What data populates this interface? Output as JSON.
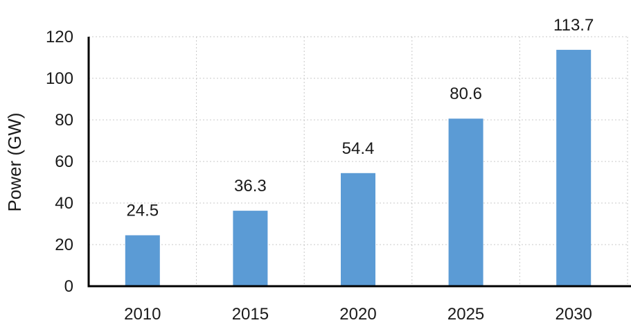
{
  "chart_data": {
    "type": "bar",
    "categories": [
      "2010",
      "2015",
      "2020",
      "2025",
      "2030"
    ],
    "values": [
      24.5,
      36.3,
      54.4,
      80.6,
      113.7
    ],
    "data_labels": [
      "24.5",
      "36.3",
      "54.4",
      "80.6",
      "113.7"
    ],
    "title": "",
    "xlabel": "",
    "ylabel": "Power (GW)",
    "ylim": [
      0,
      120
    ],
    "yticks": [
      0,
      20,
      40,
      60,
      80,
      100,
      120
    ],
    "grid": true,
    "legend": "none",
    "bar_color": "#5B9BD5"
  }
}
